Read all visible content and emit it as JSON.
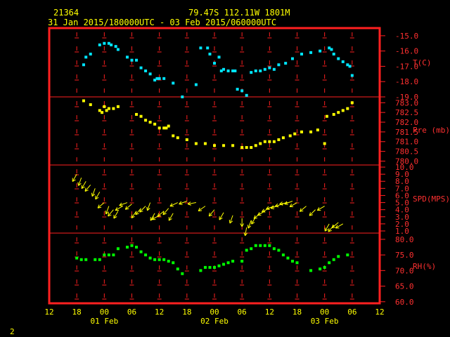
{
  "header": {
    "station_id": "21364",
    "location": "79.47S  112.11W  1801M",
    "date_range": "31 Jan 2015/180000UTC - 03 Feb 2015/060000UTC"
  },
  "footer": {
    "page_number": "2"
  },
  "colors": {
    "frame": "#ff2020",
    "text": "#ffff00",
    "red_text": "#ff3030",
    "temperature": "#00e5ff",
    "pressure": "#ffff00",
    "wind": "#ffff00",
    "humidity": "#00ff00"
  },
  "chart_data": {
    "type": "scatter",
    "x_unit": "hours since 2015-01-31 00:00 UTC",
    "x_range": [
      12,
      84
    ],
    "x_tick_labels": [
      "12",
      "18",
      "00",
      "06",
      "12",
      "18",
      "00",
      "06",
      "12",
      "18",
      "00",
      "06",
      "12"
    ],
    "x_tick_values": [
      12,
      18,
      24,
      30,
      36,
      42,
      48,
      54,
      60,
      66,
      72,
      78,
      84
    ],
    "date_labels": [
      {
        "x": 24,
        "label": "01 Feb"
      },
      {
        "x": 48,
        "label": "02 Feb"
      },
      {
        "x": 72,
        "label": "03 Feb"
      }
    ],
    "panels": [
      {
        "name": "T(C)",
        "ylim": [
          -19,
          -14.5
        ],
        "ticks": [
          "-15.0",
          "-16.0",
          "-17.0",
          "-18.0",
          "-19.0"
        ],
        "tick_values": [
          -15,
          -16,
          -17,
          -18,
          -19
        ],
        "x": [
          19.5,
          20,
          21,
          23,
          24,
          25,
          25.5,
          26.5,
          27,
          29,
          30,
          31,
          32,
          33,
          34,
          35,
          35.5,
          36,
          37,
          39,
          41,
          44,
          45,
          46.5,
          47,
          48,
          49,
          49.5,
          50,
          51,
          52,
          52.5,
          53,
          54,
          55,
          56,
          57,
          58,
          59,
          60,
          61,
          62,
          63.5,
          65,
          67,
          69,
          71,
          73,
          73.5,
          74,
          75,
          76,
          77,
          77.5,
          78
        ],
        "y": [
          -16.9,
          -16.4,
          -16.2,
          -15.6,
          -15.5,
          -15.5,
          -15.6,
          -15.7,
          -15.9,
          -16.4,
          -16.6,
          -16.6,
          -17.1,
          -17.3,
          -17.5,
          -17.9,
          -17.8,
          -17.8,
          -17.8,
          -18.1,
          -19.0,
          -18.2,
          -15.8,
          -15.8,
          -16.2,
          -16.8,
          -16.4,
          -17.3,
          -17.2,
          -17.3,
          -17.3,
          -17.3,
          -18.5,
          -18.6,
          -18.9,
          -17.4,
          -17.3,
          -17.3,
          -17.2,
          -17.1,
          -17.2,
          -16.9,
          -16.8,
          -16.5,
          -16.2,
          -16.1,
          -16.0,
          -15.8,
          -15.9,
          -16.2,
          -16.5,
          -16.7,
          -16.9,
          -17.0,
          -17.6
        ],
        "color": "#00e5ff"
      },
      {
        "name": "Pre (mb)",
        "ylim": [
          779.8,
          783.3
        ],
        "ticks": [
          "783.0",
          "782.5",
          "782.0",
          "781.5",
          "781.0",
          "780.5",
          "780.0"
        ],
        "tick_values": [
          783,
          782.5,
          782,
          781.5,
          781,
          780.5,
          780
        ],
        "x": [
          19.5,
          21,
          23,
          23.5,
          24,
          24.5,
          25,
          26,
          27,
          31,
          32,
          33,
          34,
          35,
          36,
          37,
          37.5,
          38,
          39,
          40,
          42,
          44,
          46,
          48,
          50,
          52,
          54,
          55,
          56,
          57,
          58,
          59,
          60,
          61,
          62,
          63,
          64.5,
          65.5,
          67,
          69,
          70.5,
          72,
          72.5,
          74,
          75,
          76,
          77,
          78
        ],
        "y": [
          783.1,
          782.9,
          782.6,
          782.5,
          782.8,
          782.6,
          782.7,
          782.7,
          782.8,
          782.4,
          782.3,
          782.1,
          782.0,
          781.9,
          781.7,
          781.7,
          781.7,
          781.8,
          781.3,
          781.2,
          781.1,
          780.9,
          780.9,
          780.8,
          780.8,
          780.8,
          780.7,
          780.7,
          780.7,
          780.8,
          780.9,
          781.0,
          781.0,
          781.0,
          781.1,
          781.2,
          781.3,
          781.4,
          781.5,
          781.5,
          781.6,
          780.9,
          782.3,
          782.4,
          782.5,
          782.6,
          782.7,
          783.0
        ],
        "color": "#ffff00"
      },
      {
        "name": "SPD(MPS)",
        "ylim": [
          0.7,
          10.3
        ],
        "ticks": [
          "10.0",
          "9.0",
          "8.0",
          "7.0",
          "6.0",
          "5.0",
          "4.0",
          "3.0",
          "2.0",
          "1.0"
        ],
        "tick_values": [
          10,
          9,
          8,
          7,
          6,
          5,
          4,
          3,
          2,
          1
        ],
        "x": [
          18,
          19,
          20,
          21,
          22,
          23,
          24,
          25,
          26,
          27,
          28,
          29,
          30,
          31,
          32,
          33,
          34,
          35,
          36,
          37,
          38,
          39,
          40,
          42,
          44,
          46,
          48,
          50,
          52,
          54,
          55,
          56,
          57,
          58,
          59,
          60,
          61,
          62,
          63,
          64,
          65,
          66,
          68,
          70,
          72,
          73,
          74,
          75,
          76
        ],
        "y": [
          9.0,
          8.5,
          8.0,
          7.5,
          7.0,
          6.5,
          5.0,
          4.5,
          4.0,
          3.8,
          4.5,
          5.0,
          4.8,
          3.8,
          4.2,
          4.5,
          5.0,
          3.5,
          3.2,
          3.8,
          4.2,
          3.5,
          5.0,
          5.2,
          5.0,
          4.5,
          4.0,
          3.6,
          3.2,
          2.8,
          1.5,
          2.5,
          3.0,
          3.5,
          3.8,
          4.2,
          4.5,
          4.6,
          4.8,
          5.0,
          5.2,
          5.0,
          4.5,
          4.0,
          4.5,
          2.0,
          1.8,
          2.2,
          2.0
        ],
        "dir": [
          210,
          200,
          210,
          220,
          200,
          210,
          230,
          200,
          220,
          210,
          240,
          250,
          230,
          215,
          220,
          225,
          200,
          210,
          240,
          230,
          220,
          210,
          245,
          250,
          260,
          235,
          220,
          210,
          200,
          180,
          190,
          200,
          210,
          230,
          240,
          245,
          250,
          250,
          255,
          260,
          250,
          240,
          230,
          225,
          240,
          210,
          220,
          230,
          240
        ],
        "color": "#ffff00"
      },
      {
        "name": "RH(%)",
        "ylim": [
          59.5,
          82
        ],
        "ticks": [
          "80.0",
          "75.0",
          "70.0",
          "65.0",
          "60.0"
        ],
        "tick_values": [
          80,
          75,
          70,
          65,
          60
        ],
        "x": [
          18,
          19,
          20,
          22,
          23,
          24,
          25,
          26,
          27,
          29,
          30,
          31,
          32,
          33,
          34,
          35,
          36,
          37,
          38,
          39,
          40,
          41,
          45,
          46,
          47,
          48,
          49,
          50,
          51,
          52,
          54,
          55,
          56,
          57,
          58,
          59,
          60,
          61,
          62,
          63,
          64,
          65,
          66,
          69,
          71,
          72,
          73,
          74,
          75,
          77
        ],
        "y": [
          74,
          73.5,
          73.5,
          73.5,
          73.5,
          75,
          75,
          75,
          77,
          77.5,
          78,
          77.5,
          76,
          75,
          74,
          73.5,
          73.5,
          73.5,
          73,
          72.5,
          70.5,
          69,
          70,
          71,
          71,
          71,
          71.5,
          72,
          72.5,
          73,
          73,
          76.5,
          77,
          78,
          78,
          78,
          78,
          77,
          76.5,
          75,
          74,
          73,
          72.5,
          70,
          70.5,
          71,
          72.5,
          73.5,
          74.5,
          75
        ],
        "color": "#00ff00"
      }
    ]
  }
}
